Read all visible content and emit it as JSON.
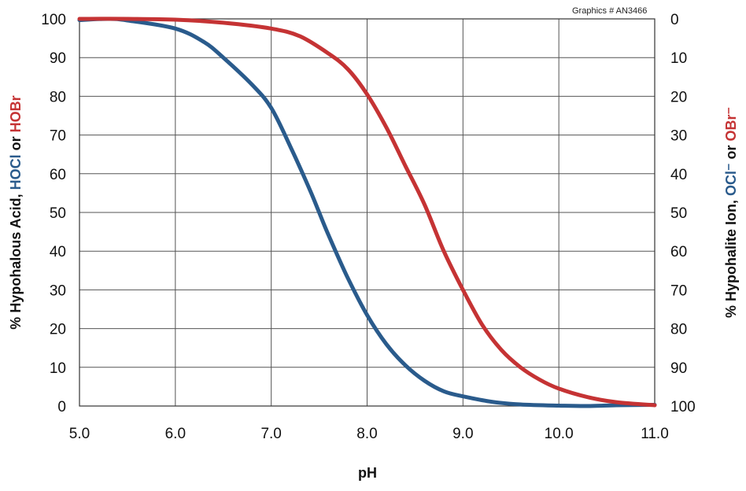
{
  "graphics_id": "Graphics # AN3466",
  "chart_data": {
    "type": "line",
    "xlabel": "pH",
    "xlim": [
      5.0,
      11.0
    ],
    "ylim": [
      0,
      100
    ],
    "grid": true,
    "x_ticks": [
      "5.0",
      "6.0",
      "7.0",
      "8.0",
      "9.0",
      "10.0",
      "11.0"
    ],
    "y_left_ticks": [
      "0",
      "10",
      "20",
      "30",
      "40",
      "50",
      "60",
      "70",
      "80",
      "90",
      "100"
    ],
    "y_right_ticks": [
      "100",
      "90",
      "80",
      "70",
      "60",
      "50",
      "40",
      "30",
      "20",
      "10",
      "0"
    ],
    "ylabel_left": {
      "prefix": "% Hypohalous Acid, ",
      "blue_term": "HOCl",
      "joiner": " or ",
      "red_term": "HOBr"
    },
    "ylabel_right": {
      "prefix": "% Hypohalite Ion, ",
      "blue_term": "OCl⁻",
      "joiner": " or ",
      "red_term": "OBr⁻"
    },
    "series": [
      {
        "color": "#2a5b8c",
        "x": [
          5.0,
          5.3,
          5.5,
          6.0,
          6.3,
          6.5,
          6.8,
          7.0,
          7.2,
          7.4,
          7.5,
          7.6,
          7.8,
          8.0,
          8.2,
          8.4,
          8.6,
          8.8,
          9.0,
          9.3,
          9.6,
          10.0,
          10.3,
          10.6,
          11.0
        ],
        "y": [
          99.7,
          100.0,
          99.6,
          97.5,
          94,
          90,
          83,
          77,
          67,
          56,
          50,
          44,
          33,
          23.5,
          16,
          10.5,
          6.5,
          3.8,
          2.5,
          1.1,
          0.4,
          0.1,
          0.0,
          0.2,
          0.3
        ]
      },
      {
        "color": "#c53334",
        "x": [
          5.0,
          5.5,
          6.0,
          6.5,
          7.0,
          7.3,
          7.6,
          7.8,
          8.0,
          8.2,
          8.4,
          8.6,
          8.8,
          9.0,
          9.2,
          9.4,
          9.6,
          9.8,
          10.0,
          10.3,
          10.6,
          11.0
        ],
        "y": [
          100.0,
          100.0,
          99.8,
          99.0,
          97.5,
          95.5,
          91,
          87,
          80.5,
          72,
          62,
          52,
          40,
          30,
          21,
          14.5,
          10,
          6.8,
          4.5,
          2.3,
          1.0,
          0.2
        ]
      }
    ]
  }
}
